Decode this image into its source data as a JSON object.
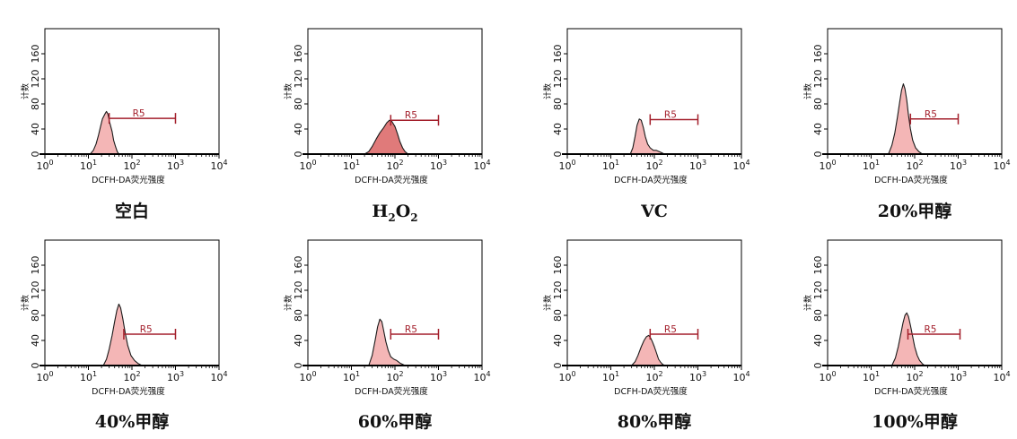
{
  "colors": {
    "fill": "#f4b6b6",
    "fill_dark": "#e07a7a",
    "stroke": "#1a1a1a",
    "gate": "#a31f2b",
    "frame": "#000000"
  },
  "chart_data": [
    {
      "type": "area",
      "title": "空白",
      "title_html": "空白",
      "xlabel": "DCFH-DA荧光强度",
      "ylabel": "计数",
      "xscale": "log",
      "xlim": [
        1,
        10000
      ],
      "ylim": [
        0,
        200
      ],
      "yticks": [
        0,
        40,
        80,
        120,
        160
      ],
      "xticks": [
        1,
        10,
        100,
        1000,
        10000
      ],
      "xtick_labels": [
        "10^0",
        "10^1",
        "10^2",
        "10^3",
        "10^4"
      ],
      "gate": {
        "label": "R5",
        "x_start": 30,
        "x_end": 1000,
        "y": 57
      },
      "fill_color": "#f4b6b6",
      "series": [
        {
          "x": [
            11,
            13,
            15,
            17,
            19,
            21,
            24,
            26,
            28,
            31,
            35,
            38,
            42,
            46,
            50
          ],
          "y": [
            0,
            6,
            16,
            30,
            44,
            56,
            64,
            68,
            64,
            50,
            36,
            22,
            12,
            4,
            0
          ]
        }
      ]
    },
    {
      "type": "area",
      "title": "H2O2",
      "title_parts": [
        "H",
        "2",
        "O",
        "2"
      ],
      "xlabel": "DCFH-DA荧光强度",
      "ylabel": "计数",
      "xscale": "log",
      "xlim": [
        1,
        10000
      ],
      "ylim": [
        0,
        200
      ],
      "yticks": [
        0,
        40,
        80,
        120,
        160
      ],
      "xticks": [
        1,
        10,
        100,
        1000,
        10000
      ],
      "xtick_labels": [
        "10^0",
        "10^1",
        "10^2",
        "10^3",
        "10^4"
      ],
      "gate": {
        "label": "R5",
        "x_start": 80,
        "x_end": 1000,
        "y": 54
      },
      "fill_color": "#e07a7a",
      "series": [
        {
          "x": [
            20,
            25,
            30,
            37,
            45,
            55,
            65,
            75,
            85,
            100,
            115,
            130,
            150,
            170,
            200
          ],
          "y": [
            0,
            4,
            12,
            24,
            34,
            42,
            50,
            54,
            52,
            44,
            32,
            20,
            10,
            4,
            0
          ]
        }
      ]
    },
    {
      "type": "area",
      "title": "VC",
      "title_html": "VC",
      "xlabel": "DCFH-DA荧光强度",
      "ylabel": "计数",
      "xscale": "log",
      "xlim": [
        1,
        10000
      ],
      "ylim": [
        0,
        200
      ],
      "yticks": [
        0,
        40,
        80,
        120,
        160
      ],
      "xticks": [
        1,
        10,
        100,
        1000,
        10000
      ],
      "xtick_labels": [
        "10^0",
        "10^1",
        "10^2",
        "10^3",
        "10^4"
      ],
      "gate": {
        "label": "R5",
        "x_start": 80,
        "x_end": 1000,
        "y": 55
      },
      "fill_color": "#f4b6b6",
      "series": [
        {
          "x": [
            28,
            32,
            36,
            40,
            45,
            50,
            56,
            62,
            70,
            80,
            95,
            110,
            130,
            150,
            170
          ],
          "y": [
            0,
            10,
            28,
            46,
            56,
            54,
            42,
            28,
            16,
            10,
            6,
            6,
            4,
            2,
            0
          ]
        }
      ]
    },
    {
      "type": "area",
      "title": "20%甲醇",
      "title_html": "20%甲醇",
      "xlabel": "DCFH-DA荧光强度",
      "ylabel": "计数",
      "xscale": "log",
      "xlim": [
        1,
        10000
      ],
      "ylim": [
        0,
        200
      ],
      "yticks": [
        0,
        40,
        80,
        120,
        160
      ],
      "xticks": [
        1,
        10,
        100,
        1000,
        10000
      ],
      "xtick_labels": [
        "10^0",
        "10^1",
        "10^2",
        "10^3",
        "10^4"
      ],
      "gate": {
        "label": "R5",
        "x_start": 80,
        "x_end": 1000,
        "y": 56
      },
      "fill_color": "#f4b6b6",
      "series": [
        {
          "x": [
            25,
            30,
            35,
            40,
            45,
            50,
            55,
            60,
            66,
            72,
            80,
            90,
            105,
            125,
            150
          ],
          "y": [
            0,
            14,
            34,
            58,
            82,
            102,
            112,
            104,
            86,
            62,
            40,
            22,
            10,
            4,
            0
          ]
        }
      ]
    },
    {
      "type": "area",
      "title": "40%甲醇",
      "title_html": "40%甲醇",
      "xlabel": "DCFH-DA荧光强度",
      "ylabel": "计数",
      "xscale": "log",
      "xlim": [
        1,
        10000
      ],
      "ylim": [
        0,
        200
      ],
      "yticks": [
        0,
        40,
        80,
        120,
        160
      ],
      "xticks": [
        1,
        10,
        100,
        1000,
        10000
      ],
      "xtick_labels": [
        "10^0",
        "10^1",
        "10^2",
        "10^3",
        "10^4"
      ],
      "gate": {
        "label": "R5",
        "x_start": 65,
        "x_end": 1000,
        "y": 50
      },
      "fill_color": "#f4b6b6",
      "series": [
        {
          "x": [
            22,
            26,
            30,
            35,
            40,
            45,
            50,
            55,
            62,
            70,
            80,
            95,
            115,
            140,
            170
          ],
          "y": [
            0,
            10,
            26,
            48,
            70,
            88,
            98,
            92,
            74,
            52,
            32,
            16,
            8,
            3,
            0
          ]
        }
      ]
    },
    {
      "type": "area",
      "title": "60%甲醇",
      "title_html": "60%甲醇",
      "xlabel": "DCFH-DA荧光强度",
      "ylabel": "计数",
      "xscale": "log",
      "xlim": [
        1,
        10000
      ],
      "ylim": [
        0,
        200
      ],
      "yticks": [
        0,
        40,
        80,
        120,
        160
      ],
      "xticks": [
        1,
        10,
        100,
        1000,
        10000
      ],
      "xtick_labels": [
        "10^0",
        "10^1",
        "10^2",
        "10^3",
        "10^4"
      ],
      "gate": {
        "label": "R5",
        "x_start": 80,
        "x_end": 1000,
        "y": 50
      },
      "fill_color": "#f4b6b6",
      "series": [
        {
          "x": [
            25,
            30,
            35,
            40,
            45,
            50,
            55,
            62,
            70,
            80,
            95,
            110,
            130,
            150,
            170
          ],
          "y": [
            0,
            16,
            40,
            62,
            74,
            70,
            56,
            38,
            24,
            14,
            10,
            8,
            4,
            2,
            0
          ]
        }
      ]
    },
    {
      "type": "area",
      "title": "80%甲醇",
      "title_html": "80%甲醇",
      "xlabel": "DCFH-DA荧光强度",
      "ylabel": "计数",
      "xscale": "log",
      "xlim": [
        1,
        10000
      ],
      "ylim": [
        0,
        200
      ],
      "yticks": [
        0,
        40,
        80,
        120,
        160
      ],
      "xticks": [
        1,
        10,
        100,
        1000,
        10000
      ],
      "xtick_labels": [
        "10^0",
        "10^1",
        "10^2",
        "10^3",
        "10^4"
      ],
      "gate": {
        "label": "R5",
        "x_start": 80,
        "x_end": 1000,
        "y": 50
      },
      "fill_color": "#f4b6b6",
      "series": [
        {
          "x": [
            30,
            36,
            42,
            50,
            58,
            66,
            74,
            82,
            90,
            100,
            112,
            125,
            140,
            155,
            170
          ],
          "y": [
            0,
            6,
            16,
            30,
            40,
            46,
            48,
            44,
            38,
            30,
            20,
            10,
            5,
            2,
            0
          ]
        }
      ]
    },
    {
      "type": "area",
      "title": "100%甲醇",
      "title_html": "100%甲醇",
      "xlabel": "DCFH-DA荧光强度",
      "ylabel": "计数",
      "xscale": "log",
      "xlim": [
        1,
        10000
      ],
      "ylim": [
        0,
        200
      ],
      "yticks": [
        0,
        40,
        80,
        120,
        160
      ],
      "xticks": [
        1,
        10,
        100,
        1000,
        10000
      ],
      "xtick_labels": [
        "10^0",
        "10^1",
        "10^2",
        "10^3",
        "10^4"
      ],
      "gate": {
        "label": "R5",
        "x_start": 70,
        "x_end": 1100,
        "y": 50
      },
      "fill_color": "#f4b6b6",
      "series": [
        {
          "x": [
            30,
            36,
            42,
            48,
            54,
            60,
            66,
            72,
            80,
            90,
            100,
            115,
            130,
            150,
            170
          ],
          "y": [
            0,
            12,
            30,
            50,
            68,
            80,
            84,
            78,
            64,
            46,
            30,
            16,
            8,
            3,
            0
          ]
        }
      ]
    }
  ]
}
